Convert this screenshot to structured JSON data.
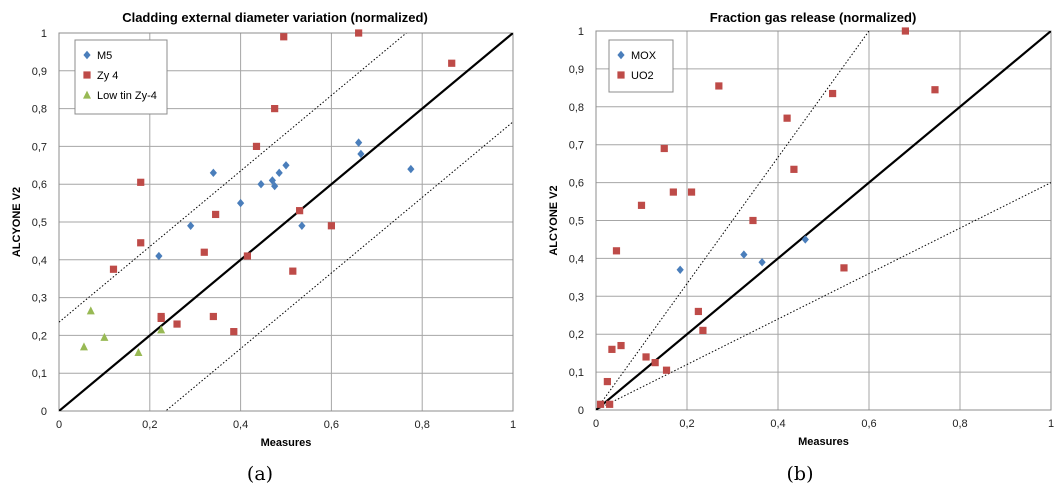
{
  "chart_data": [
    {
      "type": "scatter",
      "title": "Cladding external diameter variation (normalized)",
      "xlabel": "Measures",
      "ylabel": "ALCYONE V2",
      "xlim": [
        0,
        1
      ],
      "ylim": [
        0,
        1
      ],
      "xticks": [
        "0",
        "0,2",
        "0,4",
        "0,6",
        "0,8",
        "1"
      ],
      "yticks": [
        "0",
        "0,1",
        "0,2",
        "0,3",
        "0,4",
        "0,5",
        "0,6",
        "0,7",
        "0,8",
        "0,9",
        "1"
      ],
      "grid": true,
      "legend_position": "top-left",
      "caption": "(a)",
      "reference_lines": [
        {
          "style": "solid",
          "slope": 1,
          "intercept": 0
        },
        {
          "style": "dotted",
          "slope": 1,
          "intercept": 0.235
        },
        {
          "style": "dotted",
          "slope": 1,
          "intercept": -0.235
        }
      ],
      "series": [
        {
          "name": "M5",
          "marker": "diamond",
          "color": "#4a7ebb",
          "points": [
            [
              0.22,
              0.41
            ],
            [
              0.29,
              0.49
            ],
            [
              0.34,
              0.63
            ],
            [
              0.4,
              0.55
            ],
            [
              0.445,
              0.6
            ],
            [
              0.47,
              0.61
            ],
            [
              0.475,
              0.595
            ],
            [
              0.485,
              0.63
            ],
            [
              0.5,
              0.65
            ],
            [
              0.535,
              0.49
            ],
            [
              0.66,
              0.71
            ],
            [
              0.665,
              0.68
            ],
            [
              0.775,
              0.64
            ]
          ]
        },
        {
          "name": "Zy 4",
          "marker": "square",
          "color": "#be4b48",
          "points": [
            [
              0.12,
              0.375
            ],
            [
              0.18,
              0.605
            ],
            [
              0.18,
              0.445
            ],
            [
              0.225,
              0.245
            ],
            [
              0.225,
              0.25
            ],
            [
              0.26,
              0.23
            ],
            [
              0.32,
              0.42
            ],
            [
              0.34,
              0.25
            ],
            [
              0.345,
              0.52
            ],
            [
              0.385,
              0.21
            ],
            [
              0.415,
              0.41
            ],
            [
              0.435,
              0.7
            ],
            [
              0.475,
              0.8
            ],
            [
              0.495,
              0.99
            ],
            [
              0.515,
              0.37
            ],
            [
              0.53,
              0.53
            ],
            [
              0.6,
              0.49
            ],
            [
              0.66,
              1.0
            ],
            [
              0.865,
              0.92
            ]
          ]
        },
        {
          "name": "Low tin Zy-4",
          "marker": "triangle",
          "color": "#98b954",
          "points": [
            [
              0.055,
              0.17
            ],
            [
              0.07,
              0.265
            ],
            [
              0.1,
              0.195
            ],
            [
              0.175,
              0.155
            ],
            [
              0.225,
              0.215
            ]
          ]
        }
      ]
    },
    {
      "type": "scatter",
      "title": "Fraction gas release (normalized)",
      "xlabel": "Measures",
      "ylabel": "ALCYONE V2",
      "xlim": [
        0,
        1
      ],
      "ylim": [
        0,
        1
      ],
      "xticks": [
        "0",
        "0,2",
        "0,4",
        "0,6",
        "0,8",
        "1"
      ],
      "yticks": [
        "0",
        "0,1",
        "0,2",
        "0,3",
        "0,4",
        "0,5",
        "0,6",
        "0,7",
        "0,8",
        "0,9",
        "1"
      ],
      "grid": true,
      "legend_position": "top-left",
      "caption": "(b)",
      "reference_lines": [
        {
          "style": "solid",
          "slope": 1,
          "intercept": 0
        },
        {
          "style": "dotted",
          "slope": 1.667,
          "intercept": 0
        },
        {
          "style": "dotted",
          "slope": 0.6,
          "intercept": 0
        }
      ],
      "series": [
        {
          "name": "MOX",
          "marker": "diamond",
          "color": "#4a7ebb",
          "points": [
            [
              0.185,
              0.37
            ],
            [
              0.325,
              0.41
            ],
            [
              0.365,
              0.39
            ],
            [
              0.46,
              0.45
            ]
          ]
        },
        {
          "name": "UO2",
          "marker": "square",
          "color": "#be4b48",
          "points": [
            [
              0.01,
              0.015
            ],
            [
              0.025,
              0.075
            ],
            [
              0.03,
              0.015
            ],
            [
              0.035,
              0.16
            ],
            [
              0.045,
              0.42
            ],
            [
              0.055,
              0.17
            ],
            [
              0.1,
              0.54
            ],
            [
              0.11,
              0.14
            ],
            [
              0.13,
              0.125
            ],
            [
              0.15,
              0.69
            ],
            [
              0.155,
              0.105
            ],
            [
              0.17,
              0.575
            ],
            [
              0.21,
              0.575
            ],
            [
              0.225,
              0.26
            ],
            [
              0.235,
              0.21
            ],
            [
              0.27,
              0.855
            ],
            [
              0.345,
              0.5
            ],
            [
              0.42,
              0.77
            ],
            [
              0.435,
              0.635
            ],
            [
              0.52,
              0.835
            ],
            [
              0.545,
              0.375
            ],
            [
              0.68,
              1.0
            ],
            [
              0.745,
              0.845
            ]
          ]
        }
      ]
    }
  ]
}
